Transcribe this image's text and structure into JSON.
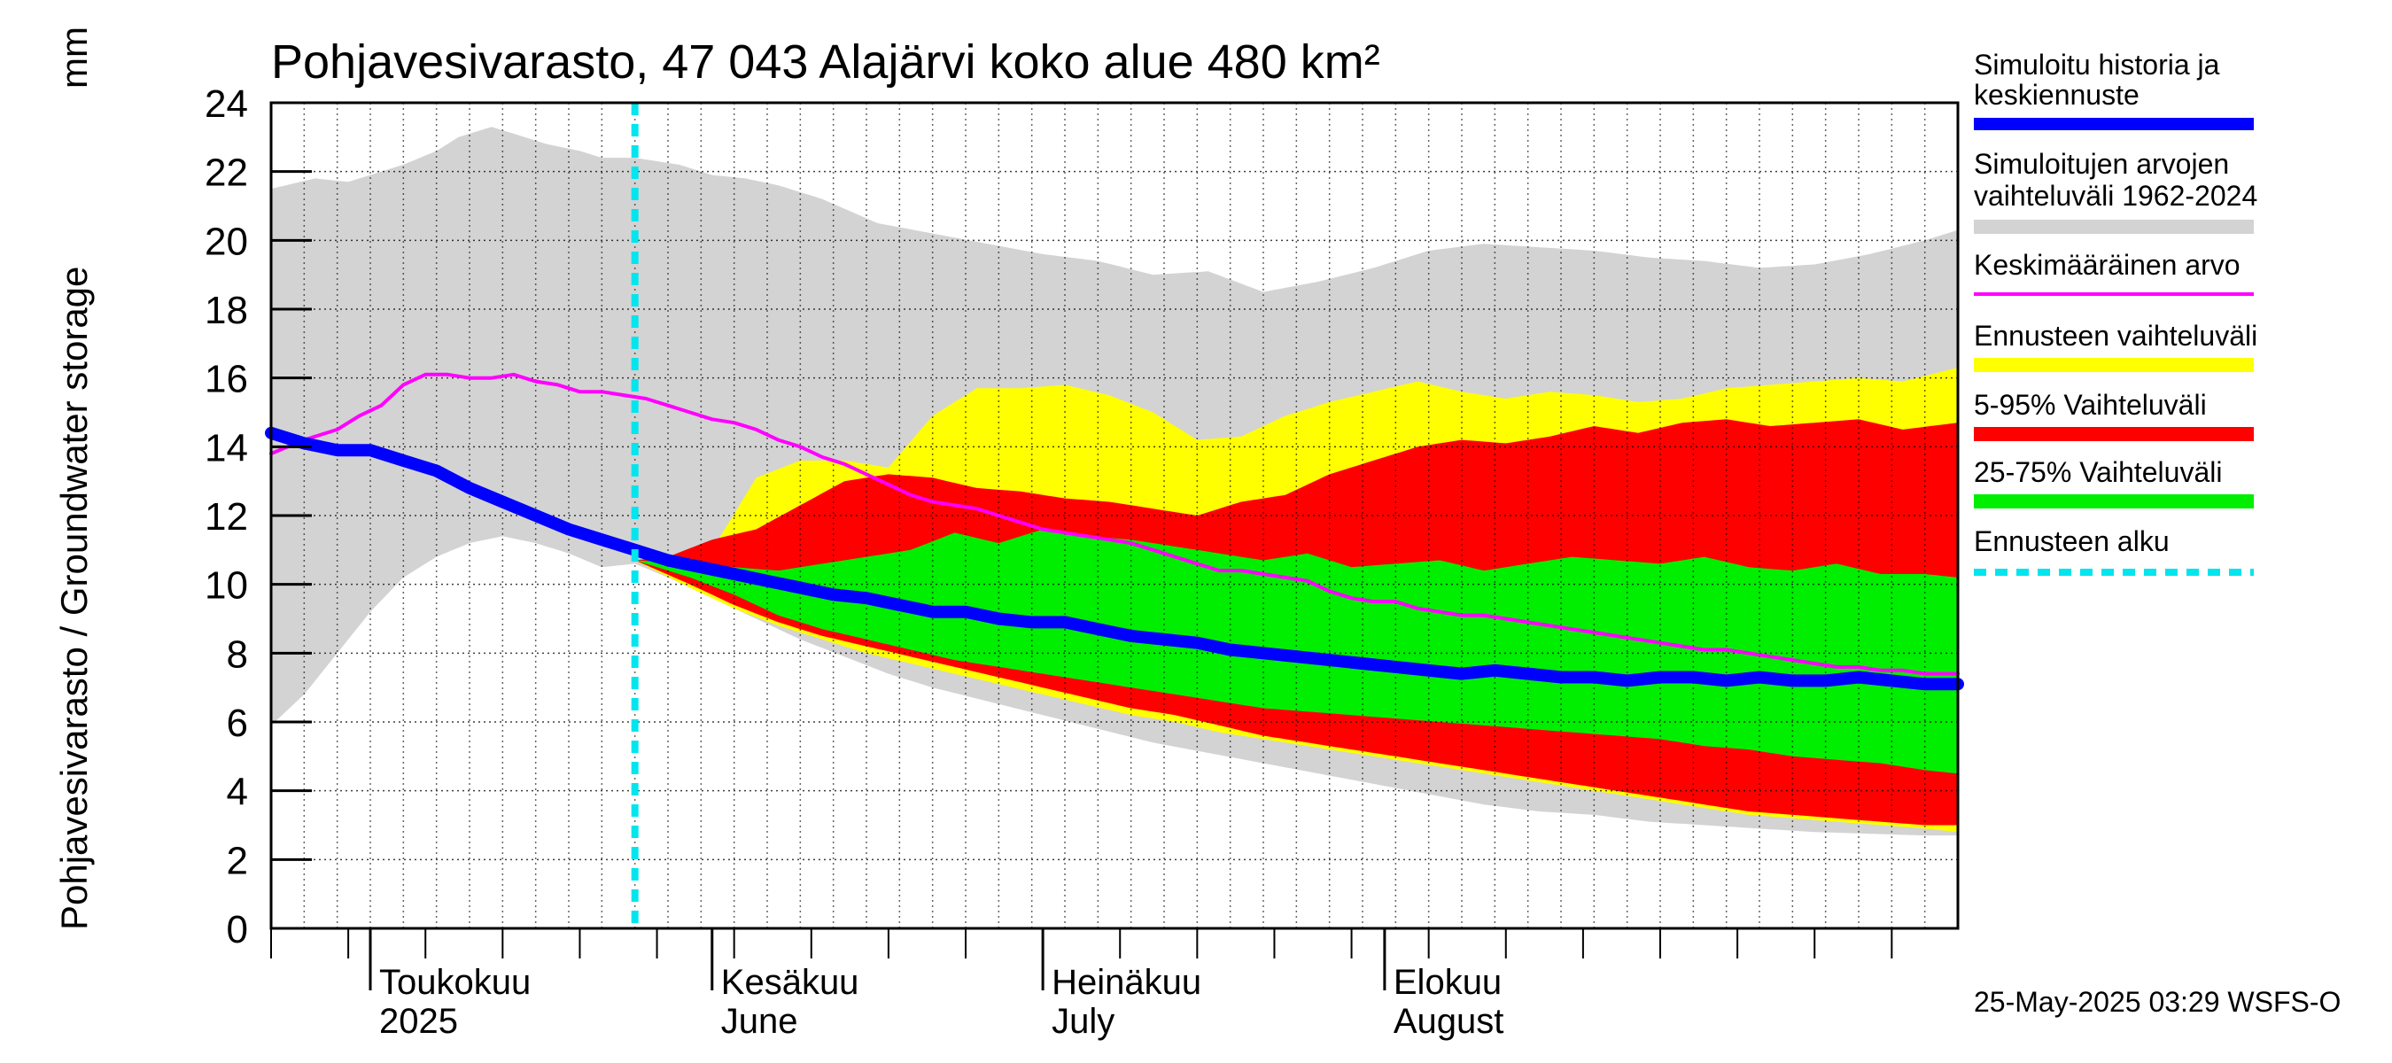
{
  "chart_data": {
    "type": "area",
    "title": "Pohjavesivarasto, 47 043 Alajärvi koko alue 480 km²",
    "ylabel": "Pohjavesivarasto / Groundwater storage",
    "yunit": "mm",
    "ylim": [
      0,
      24
    ],
    "yticks": [
      "0",
      "2",
      "4",
      "6",
      "8",
      "10",
      "12",
      "14",
      "16",
      "18",
      "20",
      "22",
      "24"
    ],
    "xlim_days": [
      0,
      153
    ],
    "x_axis_start": "2025-04-22",
    "month_labels": [
      {
        "day": 9,
        "line1": "Toukokuu",
        "line2": "2025"
      },
      {
        "day": 40,
        "line1": "Kesäkuu",
        "line2": "June"
      },
      {
        "day": 70,
        "line1": "Heinäkuu",
        "line2": "July"
      },
      {
        "day": 101,
        "line1": "Elokuu",
        "line2": "August"
      }
    ],
    "forecast_start_day": 33,
    "timestamp": "25-May-2025 03:29 WSFS-O",
    "legend": [
      {
        "label_lines": [
          "Simuloitu historia ja",
          "keskiennuste"
        ],
        "color": "#0000ff",
        "style": "thick"
      },
      {
        "label_lines": [
          "Simuloitujen arvojen",
          "vaihteluväli 1962-2024"
        ],
        "color": "#d3d3d3",
        "style": "band"
      },
      {
        "label_lines": [
          "Keskimääräinen arvo"
        ],
        "color": "#ff00ff",
        "style": "line"
      },
      {
        "label_lines": [
          "Ennusteen vaihteluväli"
        ],
        "color": "#ffff00",
        "style": "band"
      },
      {
        "label_lines": [
          "5-95% Vaihteluväli"
        ],
        "color": "#ff0000",
        "style": "band"
      },
      {
        "label_lines": [
          "25-75% Vaihteluväli"
        ],
        "color": "#00ee00",
        "style": "band"
      },
      {
        "label_lines": [
          "Ennusteen alku"
        ],
        "color": "#00e5ee",
        "style": "dashed"
      }
    ],
    "series": [
      {
        "name": "hist_range_upper",
        "x": [
          0,
          4,
          7,
          9,
          12,
          15,
          17,
          20,
          22,
          25,
          28,
          30,
          33,
          37,
          40,
          43,
          46,
          50,
          55,
          60,
          65,
          70,
          75,
          80,
          85,
          90,
          95,
          100,
          105,
          110,
          115,
          120,
          125,
          130,
          135,
          140,
          145,
          150,
          153
        ],
        "values": [
          21.5,
          21.8,
          21.7,
          21.9,
          22.2,
          22.6,
          23.0,
          23.3,
          23.1,
          22.8,
          22.6,
          22.4,
          22.4,
          22.2,
          21.9,
          21.8,
          21.6,
          21.2,
          20.5,
          20.2,
          19.9,
          19.6,
          19.4,
          19.0,
          19.1,
          18.5,
          18.8,
          19.2,
          19.7,
          19.9,
          19.8,
          19.7,
          19.5,
          19.4,
          19.2,
          19.3,
          19.6,
          20.0,
          20.3
        ]
      },
      {
        "name": "hist_range_lower",
        "x": [
          0,
          3,
          6,
          9,
          12,
          15,
          18,
          21,
          24,
          27,
          30,
          33,
          36,
          40,
          44,
          48,
          52,
          56,
          60,
          65,
          70,
          75,
          80,
          85,
          90,
          95,
          100,
          105,
          110,
          115,
          120,
          125,
          130,
          135,
          140,
          145,
          150,
          153
        ],
        "values": [
          5.9,
          6.8,
          8.0,
          9.2,
          10.2,
          10.8,
          11.2,
          11.4,
          11.2,
          10.9,
          10.5,
          10.6,
          10.2,
          9.6,
          9.0,
          8.4,
          7.9,
          7.4,
          7.0,
          6.6,
          6.2,
          5.8,
          5.4,
          5.1,
          4.8,
          4.5,
          4.2,
          3.9,
          3.6,
          3.4,
          3.3,
          3.1,
          3.0,
          2.9,
          2.8,
          2.75,
          2.7,
          2.7
        ]
      },
      {
        "name": "ennuste_upper",
        "x": [
          33,
          40,
          44,
          48,
          52,
          56,
          60,
          64,
          68,
          72,
          76,
          80,
          84,
          88,
          92,
          96,
          100,
          104,
          108,
          112,
          116,
          120,
          124,
          128,
          132,
          136,
          140,
          144,
          148,
          153
        ],
        "values": [
          10.7,
          11.0,
          13.1,
          13.6,
          13.6,
          13.4,
          14.9,
          15.7,
          15.7,
          15.8,
          15.5,
          15.0,
          14.2,
          14.3,
          14.9,
          15.3,
          15.6,
          15.9,
          15.6,
          15.4,
          15.6,
          15.5,
          15.3,
          15.4,
          15.7,
          15.8,
          15.9,
          16.0,
          15.9,
          16.3
        ]
      },
      {
        "name": "p95",
        "x": [
          33,
          36,
          40,
          44,
          48,
          52,
          56,
          60,
          64,
          68,
          72,
          76,
          80,
          84,
          88,
          92,
          96,
          100,
          104,
          108,
          112,
          116,
          120,
          124,
          128,
          132,
          136,
          140,
          144,
          148,
          153
        ],
        "values": [
          10.7,
          10.8,
          11.3,
          11.6,
          12.3,
          13.0,
          13.2,
          13.1,
          12.8,
          12.7,
          12.5,
          12.4,
          12.2,
          12.0,
          12.4,
          12.6,
          13.2,
          13.6,
          14.0,
          14.2,
          14.1,
          14.3,
          14.6,
          14.4,
          14.7,
          14.8,
          14.6,
          14.7,
          14.8,
          14.5,
          14.7
        ]
      },
      {
        "name": "p75",
        "x": [
          33,
          38,
          42,
          46,
          50,
          54,
          58,
          62,
          66,
          70,
          74,
          78,
          82,
          86,
          90,
          94,
          98,
          102,
          106,
          110,
          114,
          118,
          122,
          126,
          130,
          134,
          138,
          142,
          146,
          150,
          153
        ],
        "values": [
          10.7,
          10.6,
          10.5,
          10.4,
          10.6,
          10.8,
          11.0,
          11.5,
          11.2,
          11.6,
          11.4,
          11.3,
          11.1,
          10.9,
          10.7,
          10.9,
          10.5,
          10.6,
          10.7,
          10.4,
          10.6,
          10.8,
          10.7,
          10.6,
          10.8,
          10.5,
          10.4,
          10.6,
          10.3,
          10.3,
          10.2
        ]
      },
      {
        "name": "p25",
        "x": [
          33,
          38,
          42,
          46,
          50,
          54,
          58,
          62,
          66,
          70,
          74,
          78,
          82,
          86,
          90,
          94,
          98,
          102,
          106,
          110,
          114,
          118,
          122,
          126,
          130,
          134,
          138,
          142,
          146,
          150,
          153
        ],
        "values": [
          10.7,
          10.2,
          9.7,
          9.1,
          8.7,
          8.4,
          8.1,
          7.8,
          7.6,
          7.4,
          7.2,
          7.0,
          6.8,
          6.6,
          6.4,
          6.3,
          6.2,
          6.1,
          6.0,
          5.9,
          5.8,
          5.7,
          5.6,
          5.5,
          5.3,
          5.2,
          5.0,
          4.9,
          4.8,
          4.6,
          4.5
        ]
      },
      {
        "name": "p5",
        "x": [
          33,
          38,
          42,
          46,
          50,
          54,
          58,
          62,
          66,
          70,
          74,
          78,
          82,
          86,
          90,
          94,
          98,
          102,
          106,
          110,
          114,
          118,
          122,
          126,
          130,
          134,
          138,
          142,
          146,
          150,
          153
        ],
        "values": [
          10.7,
          10.0,
          9.4,
          8.9,
          8.5,
          8.2,
          7.9,
          7.6,
          7.3,
          7.0,
          6.7,
          6.4,
          6.2,
          5.9,
          5.6,
          5.4,
          5.2,
          5.0,
          4.8,
          4.6,
          4.4,
          4.2,
          4.0,
          3.8,
          3.6,
          3.4,
          3.3,
          3.2,
          3.1,
          3.0,
          3.0
        ]
      },
      {
        "name": "ennuste_lower",
        "x": [
          33,
          38,
          42,
          46,
          50,
          54,
          58,
          62,
          66,
          70,
          74,
          78,
          82,
          86,
          90,
          94,
          98,
          102,
          106,
          110,
          114,
          118,
          122,
          126,
          130,
          134,
          138,
          142,
          146,
          150,
          153
        ],
        "values": [
          10.7,
          9.9,
          9.3,
          8.8,
          8.4,
          8.0,
          7.7,
          7.4,
          7.1,
          6.8,
          6.5,
          6.2,
          6.0,
          5.7,
          5.5,
          5.3,
          5.1,
          4.9,
          4.7,
          4.5,
          4.3,
          4.1,
          3.9,
          3.7,
          3.5,
          3.3,
          3.2,
          3.1,
          3.0,
          2.9,
          2.8
        ]
      },
      {
        "name": "Keskimääräinen arvo",
        "x": [
          0,
          3,
          6,
          8,
          10,
          12,
          14,
          16,
          18,
          20,
          22,
          24,
          26,
          28,
          30,
          32,
          34,
          36,
          38,
          40,
          42,
          44,
          46,
          48,
          50,
          52,
          54,
          56,
          58,
          60,
          62,
          64,
          66,
          68,
          70,
          72,
          74,
          76,
          78,
          80,
          82,
          84,
          86,
          88,
          90,
          92,
          94,
          96,
          98,
          100,
          102,
          104,
          106,
          108,
          110,
          112,
          114,
          116,
          118,
          120,
          122,
          124,
          126,
          128,
          130,
          132,
          134,
          136,
          138,
          140,
          142,
          144,
          146,
          148,
          150,
          153
        ],
        "values": [
          13.8,
          14.2,
          14.5,
          14.9,
          15.2,
          15.8,
          16.1,
          16.1,
          16.0,
          16.0,
          16.1,
          15.9,
          15.8,
          15.6,
          15.6,
          15.5,
          15.4,
          15.2,
          15.0,
          14.8,
          14.7,
          14.5,
          14.2,
          14.0,
          13.7,
          13.5,
          13.2,
          12.9,
          12.6,
          12.4,
          12.3,
          12.2,
          12.0,
          11.8,
          11.6,
          11.5,
          11.4,
          11.3,
          11.2,
          11.0,
          10.8,
          10.6,
          10.4,
          10.4,
          10.3,
          10.2,
          10.1,
          9.8,
          9.6,
          9.5,
          9.5,
          9.3,
          9.2,
          9.1,
          9.1,
          9.0,
          8.9,
          8.8,
          8.7,
          8.6,
          8.5,
          8.4,
          8.3,
          8.2,
          8.1,
          8.1,
          8.0,
          7.9,
          7.8,
          7.7,
          7.6,
          7.6,
          7.5,
          7.5,
          7.4,
          7.4
        ]
      },
      {
        "name": "Simuloitu historia ja keskiennuste",
        "x": [
          0,
          3,
          6,
          9,
          12,
          15,
          18,
          21,
          24,
          27,
          30,
          33,
          36,
          39,
          42,
          45,
          48,
          51,
          54,
          57,
          60,
          63,
          66,
          69,
          72,
          75,
          78,
          81,
          84,
          87,
          90,
          93,
          96,
          99,
          102,
          105,
          108,
          111,
          114,
          117,
          120,
          123,
          126,
          129,
          132,
          135,
          138,
          141,
          144,
          147,
          150,
          153
        ],
        "values": [
          14.4,
          14.1,
          13.9,
          13.9,
          13.6,
          13.3,
          12.8,
          12.4,
          12.0,
          11.6,
          11.3,
          11.0,
          10.7,
          10.5,
          10.3,
          10.1,
          9.9,
          9.7,
          9.6,
          9.4,
          9.2,
          9.2,
          9.0,
          8.9,
          8.9,
          8.7,
          8.5,
          8.4,
          8.3,
          8.1,
          8.0,
          7.9,
          7.8,
          7.7,
          7.6,
          7.5,
          7.4,
          7.5,
          7.4,
          7.3,
          7.3,
          7.2,
          7.3,
          7.3,
          7.2,
          7.3,
          7.2,
          7.2,
          7.3,
          7.2,
          7.1,
          7.1
        ]
      }
    ]
  }
}
